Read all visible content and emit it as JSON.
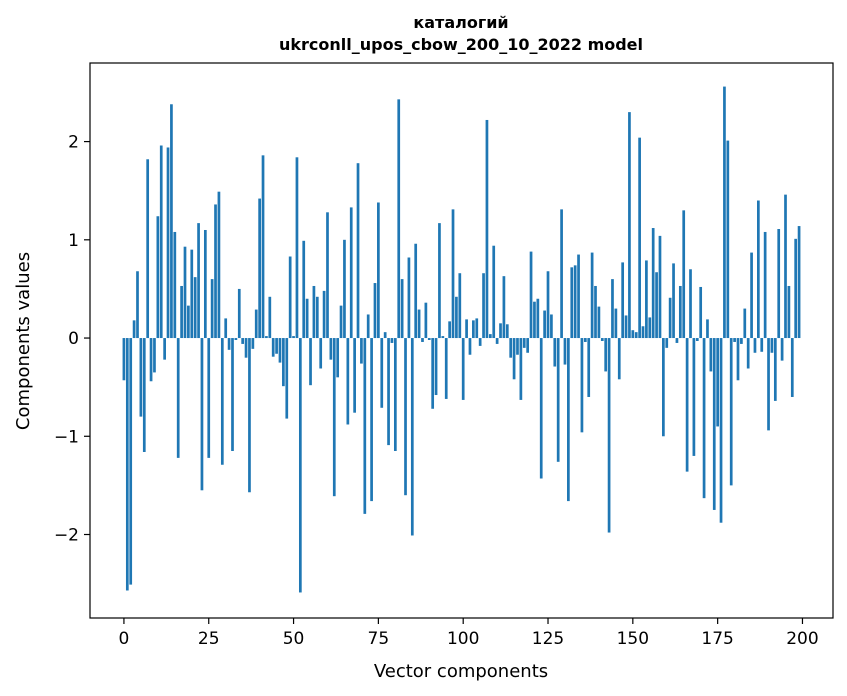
{
  "chart_data": {
    "type": "bar",
    "title": "каталогий",
    "subtitle": "ukrconll_upos_cbow_200_10_2022 model",
    "xlabel": "Vector components",
    "ylabel": "Components values",
    "xlim": [
      -10,
      209
    ],
    "ylim": [
      -2.85,
      2.8
    ],
    "xticks": [
      0,
      25,
      50,
      75,
      100,
      125,
      150,
      175,
      200
    ],
    "xtick_labels": [
      "0",
      "25",
      "50",
      "75",
      "100",
      "125",
      "150",
      "175",
      "200"
    ],
    "yticks": [
      -2,
      -1,
      0,
      1,
      2
    ],
    "ytick_labels": [
      "−2",
      "−1",
      "0",
      "1",
      "2"
    ],
    "grid": false,
    "bar_color": "#1f77b4",
    "x": [
      0,
      1,
      2,
      3,
      4,
      5,
      6,
      7,
      8,
      9,
      10,
      11,
      12,
      13,
      14,
      15,
      16,
      17,
      18,
      19,
      20,
      21,
      22,
      23,
      24,
      25,
      26,
      27,
      28,
      29,
      30,
      31,
      32,
      33,
      34,
      35,
      36,
      37,
      38,
      39,
      40,
      41,
      42,
      43,
      44,
      45,
      46,
      47,
      48,
      49,
      50,
      51,
      52,
      53,
      54,
      55,
      56,
      57,
      58,
      59,
      60,
      61,
      62,
      63,
      64,
      65,
      66,
      67,
      68,
      69,
      70,
      71,
      72,
      73,
      74,
      75,
      76,
      77,
      78,
      79,
      80,
      81,
      82,
      83,
      84,
      85,
      86,
      87,
      88,
      89,
      90,
      91,
      92,
      93,
      94,
      95,
      96,
      97,
      98,
      99,
      100,
      101,
      102,
      103,
      104,
      105,
      106,
      107,
      108,
      109,
      110,
      111,
      112,
      113,
      114,
      115,
      116,
      117,
      118,
      119,
      120,
      121,
      122,
      123,
      124,
      125,
      126,
      127,
      128,
      129,
      130,
      131,
      132,
      133,
      134,
      135,
      136,
      137,
      138,
      139,
      140,
      141,
      142,
      143,
      144,
      145,
      146,
      147,
      148,
      149,
      150,
      151,
      152,
      153,
      154,
      155,
      156,
      157,
      158,
      159,
      160,
      161,
      162,
      163,
      164,
      165,
      166,
      167,
      168,
      169,
      170,
      171,
      172,
      173,
      174,
      175,
      176,
      177,
      178,
      179,
      180,
      181,
      182,
      183,
      184,
      185,
      186,
      187,
      188,
      189,
      190,
      191,
      192,
      193,
      194,
      195,
      196,
      197,
      198,
      199
    ],
    "values": [
      -0.43,
      -2.57,
      -2.51,
      0.18,
      0.68,
      -0.8,
      -1.16,
      1.82,
      -0.44,
      -0.35,
      1.24,
      1.96,
      -0.22,
      1.94,
      2.38,
      1.08,
      -1.22,
      0.53,
      0.93,
      0.33,
      0.9,
      0.62,
      1.17,
      -1.55,
      1.1,
      -1.22,
      0.6,
      1.36,
      1.49,
      -1.29,
      0.2,
      -0.12,
      -1.15,
      -0.02,
      0.5,
      -0.06,
      -0.2,
      -1.57,
      -0.11,
      0.29,
      1.42,
      1.86,
      0.02,
      0.42,
      -0.19,
      -0.16,
      -0.25,
      -0.49,
      -0.82,
      0.83,
      0.02,
      1.84,
      -2.59,
      0.99,
      0.4,
      -0.48,
      0.53,
      0.42,
      -0.31,
      0.48,
      1.28,
      -0.22,
      -1.61,
      -0.4,
      0.33,
      1.0,
      -0.88,
      1.33,
      -0.76,
      1.78,
      -0.26,
      -1.79,
      0.24,
      -1.66,
      0.56,
      1.38,
      -0.71,
      0.06,
      -1.09,
      -0.05,
      -1.15,
      2.43,
      0.6,
      -1.6,
      0.82,
      -2.01,
      0.96,
      0.29,
      -0.04,
      0.36,
      -0.02,
      -0.72,
      -0.58,
      1.17,
      0.02,
      -0.62,
      0.17,
      1.31,
      0.42,
      0.66,
      -0.63,
      0.19,
      -0.17,
      0.18,
      0.2,
      -0.08,
      0.66,
      2.22,
      0.04,
      0.94,
      -0.06,
      0.15,
      0.63,
      0.14,
      -0.2,
      -0.42,
      -0.17,
      -0.63,
      -0.1,
      -0.15,
      0.88,
      0.37,
      0.4,
      -1.43,
      0.28,
      0.68,
      0.24,
      -0.29,
      -1.26,
      1.31,
      -0.27,
      -1.66,
      0.72,
      0.74,
      0.85,
      -0.96,
      -0.04,
      -0.6,
      0.87,
      0.53,
      0.32,
      -0.03,
      -0.34,
      -1.98,
      0.6,
      0.3,
      -0.42,
      0.77,
      0.23,
      2.3,
      0.08,
      0.06,
      2.04,
      0.12,
      0.79,
      0.21,
      1.12,
      0.67,
      1.04,
      -1.0,
      -0.1,
      0.41,
      0.76,
      -0.05,
      0.53,
      1.3,
      -1.36,
      0.7,
      -1.2,
      -0.03,
      0.52,
      -1.63,
      0.19,
      -0.34,
      -1.75,
      -0.9,
      -1.88,
      2.56,
      2.01,
      -1.5,
      -0.04,
      -0.43,
      -0.06,
      0.3,
      -0.31,
      0.87,
      -0.15,
      1.4,
      -0.14,
      1.08,
      -0.94,
      -0.15,
      -0.64,
      1.11,
      -0.23,
      1.46,
      0.53,
      -0.6,
      1.01,
      1.14
    ]
  }
}
